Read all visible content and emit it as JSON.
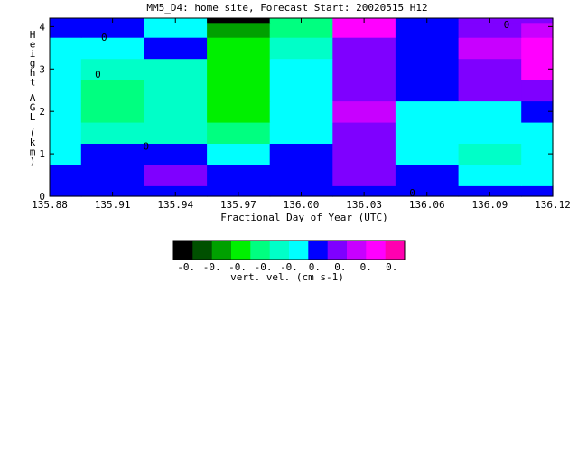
{
  "chart_data": {
    "type": "heatmap",
    "title": "MM5_D4: home site,  Forecast Start: 20020515 H12",
    "xlabel": "Fractional Day of Year (UTC)",
    "ylabel": "Height AGL (km)",
    "x_ticks": [
      "135.88",
      "135.91",
      "135.94",
      "135.97",
      "136.00",
      "136.03",
      "136.06",
      "136.09",
      "136.12"
    ],
    "y_ticks": [
      "0",
      "1",
      "2",
      "3",
      "4"
    ],
    "xlim": [
      135.88,
      136.12
    ],
    "ylim": [
      0,
      4.2
    ],
    "contour_labels": [
      "0",
      "0",
      "0",
      "0",
      "0"
    ],
    "colorbar": {
      "label": "vert. vel. (cm s-1)",
      "tick_labels": [
        "-0.",
        "-0.",
        "-0.",
        "-0.",
        "-0.",
        "0.",
        "0.",
        "0.",
        "0."
      ],
      "colors": [
        "#000000",
        "#005000",
        "#00a000",
        "#00f000",
        "#00ff80",
        "#00ffc8",
        "#00ffff",
        "#0000ff",
        "#7f00ff",
        "#c800ff",
        "#ff00ff",
        "#ff00b0"
      ]
    },
    "x": [
      135.88,
      135.91,
      135.94,
      135.97,
      136.0,
      136.03,
      136.06,
      136.09,
      136.12
    ],
    "y": [
      0,
      0.5,
      1.0,
      1.5,
      2.0,
      2.5,
      3.0,
      3.5,
      4.0,
      4.2
    ],
    "z_level_index": [
      [
        7,
        7,
        7,
        7,
        7,
        7,
        7,
        7,
        7
      ],
      [
        7,
        7,
        8,
        7,
        7,
        8,
        7,
        6,
        6
      ],
      [
        6,
        7,
        7,
        6,
        7,
        8,
        6,
        5,
        6
      ],
      [
        6,
        5,
        5,
        4,
        6,
        8,
        6,
        6,
        6
      ],
      [
        6,
        4,
        5,
        3,
        6,
        9,
        6,
        6,
        7
      ],
      [
        6,
        4,
        5,
        3,
        6,
        8,
        7,
        8,
        8
      ],
      [
        6,
        5,
        5,
        3,
        6,
        8,
        7,
        8,
        10
      ],
      [
        6,
        6,
        7,
        3,
        5,
        8,
        7,
        9,
        10
      ],
      [
        7,
        7,
        6,
        2,
        4,
        10,
        7,
        8,
        9
      ],
      [
        7,
        7,
        6,
        0,
        4,
        10,
        7,
        8,
        8
      ]
    ]
  }
}
